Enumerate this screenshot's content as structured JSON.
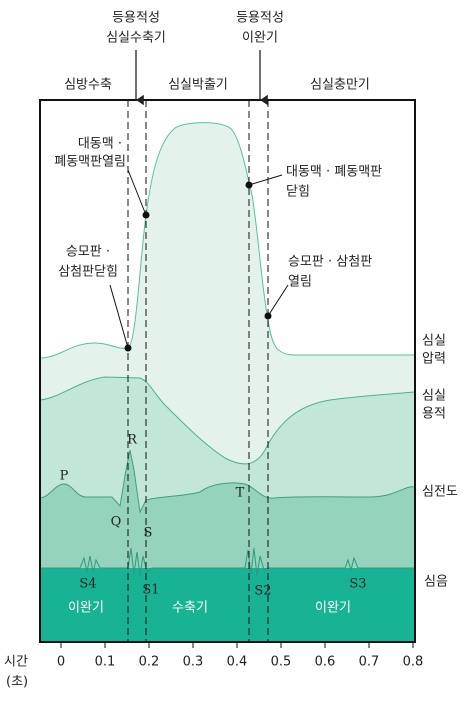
{
  "top_labels": [
    [
      "등용적성",
      "심실수축기"
    ],
    [
      "등용적성",
      "이완기"
    ]
  ],
  "phases": [
    "심방수축",
    "심실박출기",
    "심실충만기"
  ],
  "annotations": [
    [
      "대동맥 ·",
      "폐동맥판열림"
    ],
    [
      "대동맥 · 폐동맥판",
      "닫힘"
    ],
    [
      "승모판 ·",
      "삼첨판닫힘"
    ],
    [
      "승모판 · 삼첨판",
      "열림"
    ]
  ],
  "band_labels": [
    [
      "심실",
      "압력"
    ],
    [
      "심실",
      "용적"
    ],
    [
      "심전도"
    ],
    [
      "심음"
    ]
  ],
  "ecg_labels": [
    "P",
    "Q",
    "R",
    "S",
    "T"
  ],
  "sound_labels": [
    "S4",
    "S1",
    "S2",
    "S3"
  ],
  "bottom_phases": [
    "이완기",
    "수축기",
    "이완기"
  ],
  "axis": {
    "label": [
      "시간",
      "(초)"
    ],
    "ticks": [
      0,
      0.1,
      0.2,
      0.3,
      0.4,
      0.5,
      0.6,
      0.7,
      0.8
    ]
  }
}
